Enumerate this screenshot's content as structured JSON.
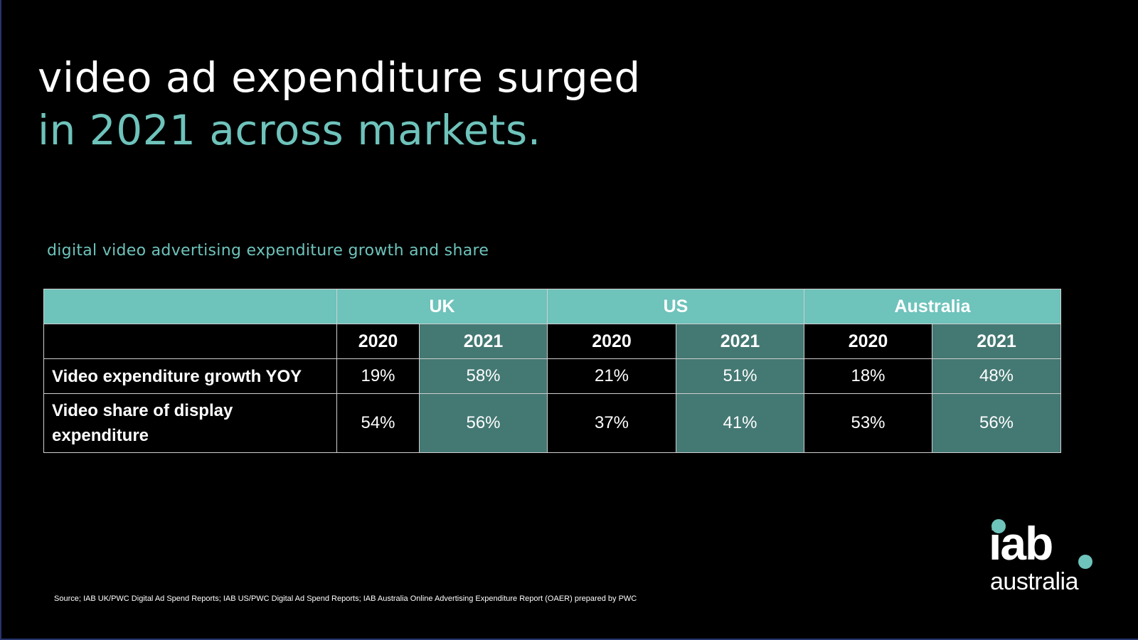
{
  "title": {
    "line1": "video ad expenditure surged",
    "line2": "in 2021 across markets."
  },
  "subtitle": "digital video advertising expenditure growth and share",
  "table": {
    "markets": [
      "UK",
      "US",
      "Australia"
    ],
    "years": [
      "2020",
      "2021",
      "2020",
      "2021",
      "2020",
      "2021"
    ],
    "rows": [
      {
        "label": "Video expenditure growth YOY",
        "values": [
          "19%",
          "58%",
          "21%",
          "51%",
          "18%",
          "48%"
        ]
      },
      {
        "label": "Video share of display expenditure",
        "values": [
          "54%",
          "56%",
          "37%",
          "41%",
          "53%",
          "56%"
        ]
      }
    ]
  },
  "source": "Source; IAB UK/PWC Digital Ad Spend Reports; IAB US/PWC Digital Ad Spend Reports; IAB Australia Online Advertising Expenditure Report (OAER) prepared by PWC",
  "logo": {
    "top": "iab",
    "bottom": "australia"
  },
  "colors": {
    "accent": "#6ec3bb",
    "dark_cell": "#447873",
    "background": "#000000"
  }
}
